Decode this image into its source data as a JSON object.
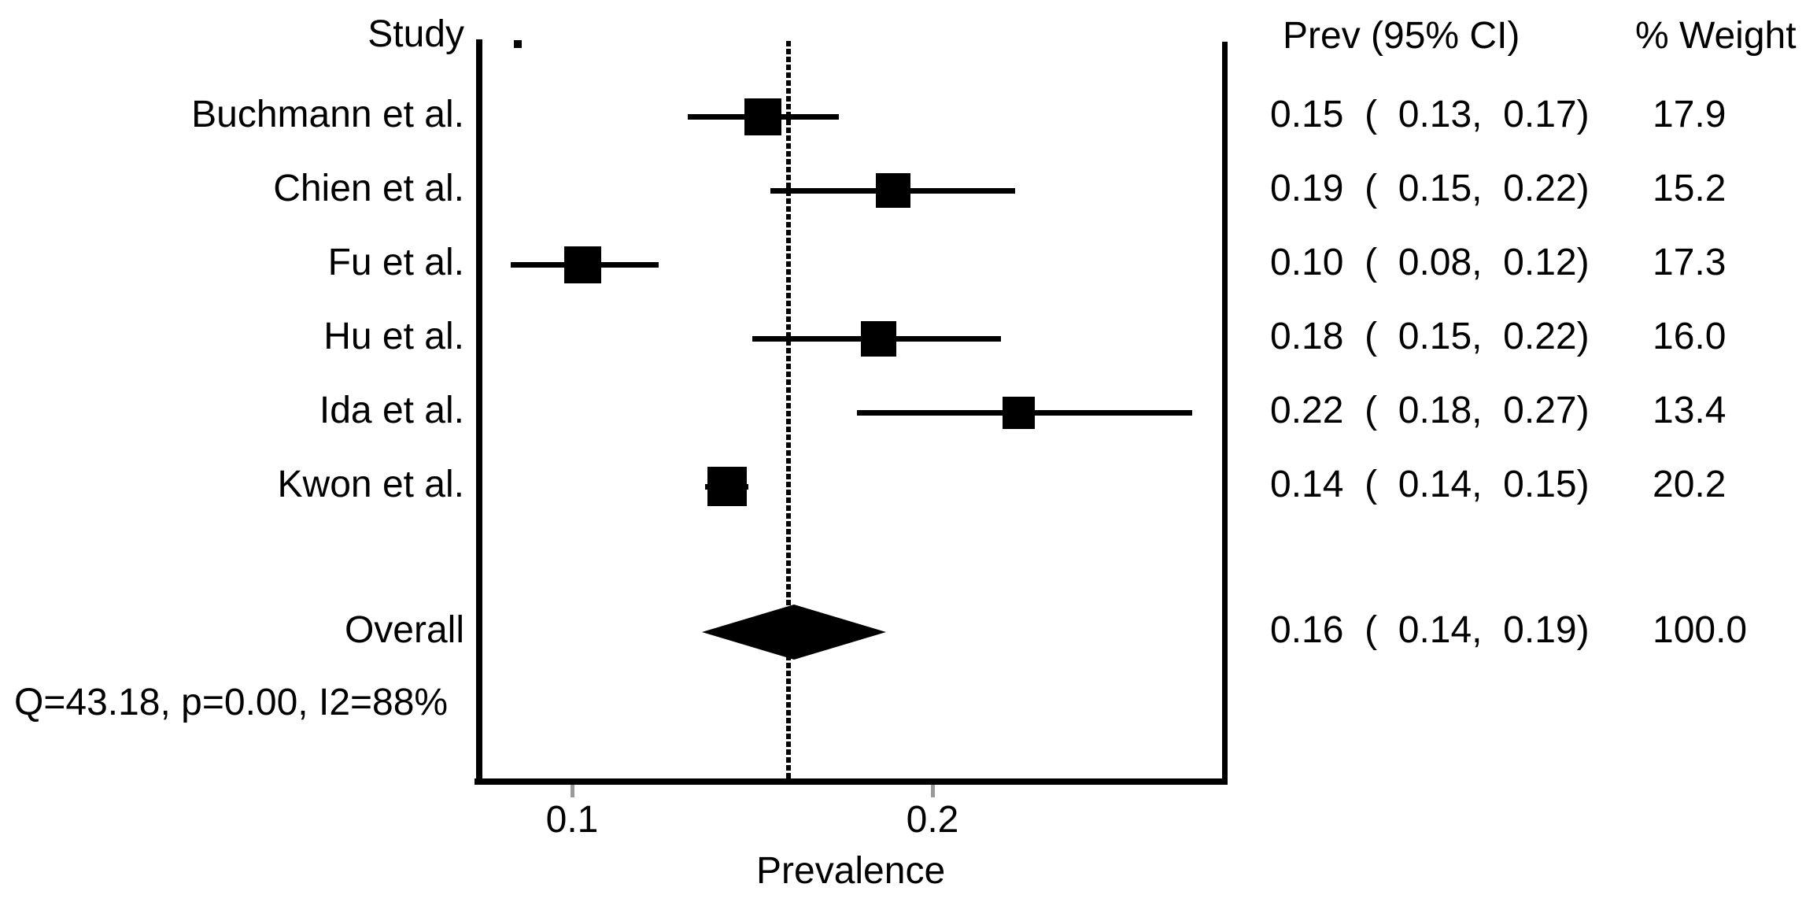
{
  "colors": {
    "foreground": "#000000",
    "tick": "#9a9a9a",
    "background": "#ffffff"
  },
  "headers": {
    "study": "Study",
    "prev_ci": "Prev (95% CI)",
    "weight": "% Weight"
  },
  "axis": {
    "xlabel": "Prevalence",
    "tick_labels": [
      "0.1",
      "0.2"
    ]
  },
  "heterogeneity_text": "Q=43.18, p=0.00, I2=88%",
  "chart_data": {
    "type": "forest",
    "title": "",
    "xlabel": "Prevalence",
    "x_ticks": [
      0.1,
      0.2
    ],
    "x_axis_range": [
      0.074,
      0.283
    ],
    "overall_reference_line": 0.16,
    "legend_position": "none",
    "grid": false,
    "studies": [
      {
        "label": "Buchmann et al.",
        "prev": 0.15,
        "ci": [
          0.13,
          0.17
        ],
        "weight": 17.9,
        "prev_text": "0.15  (  0.13,  0.17)",
        "weight_text": "17.9",
        "plotted": {
          "center": 0.153,
          "lo": 0.132,
          "hi": 0.174
        }
      },
      {
        "label": "Chien et al.",
        "prev": 0.19,
        "ci": [
          0.15,
          0.22
        ],
        "weight": 15.2,
        "prev_text": "0.19  (  0.15,  0.22)",
        "weight_text": "15.2",
        "plotted": {
          "center": 0.189,
          "lo": 0.155,
          "hi": 0.223
        }
      },
      {
        "label": "Fu et al.",
        "prev": 0.1,
        "ci": [
          0.08,
          0.12
        ],
        "weight": 17.3,
        "prev_text": "0.10  (  0.08,  0.12)",
        "weight_text": "17.3",
        "plotted": {
          "center": 0.103,
          "lo": 0.083,
          "hi": 0.124
        }
      },
      {
        "label": "Hu et al.",
        "prev": 0.18,
        "ci": [
          0.15,
          0.22
        ],
        "weight": 16.0,
        "prev_text": "0.18  (  0.15,  0.22)",
        "weight_text": "16.0",
        "plotted": {
          "center": 0.185,
          "lo": 0.15,
          "hi": 0.219
        }
      },
      {
        "label": "Ida et al.",
        "prev": 0.22,
        "ci": [
          0.18,
          0.27
        ],
        "weight": 13.4,
        "prev_text": "0.22  (  0.18,  0.27)",
        "weight_text": "13.4",
        "plotted": {
          "center": 0.224,
          "lo": 0.179,
          "hi": 0.272
        }
      },
      {
        "label": "Kwon et al.",
        "prev": 0.14,
        "ci": [
          0.14,
          0.15
        ],
        "weight": 20.2,
        "prev_text": "0.14  (  0.14,  0.15)",
        "weight_text": "20.2",
        "plotted": {
          "center": 0.143,
          "lo": 0.137,
          "hi": 0.149
        }
      }
    ],
    "overall": {
      "label": "Overall",
      "prev": 0.16,
      "ci": [
        0.14,
        0.19
      ],
      "weight": 100.0,
      "prev_text": "0.16  (  0.14,  0.19)",
      "weight_text": "100.0",
      "plotted": {
        "center": 0.161,
        "lo": 0.136,
        "hi": 0.187
      }
    },
    "heterogeneity": "Q=43.18, p=0.00, I2=88%"
  }
}
